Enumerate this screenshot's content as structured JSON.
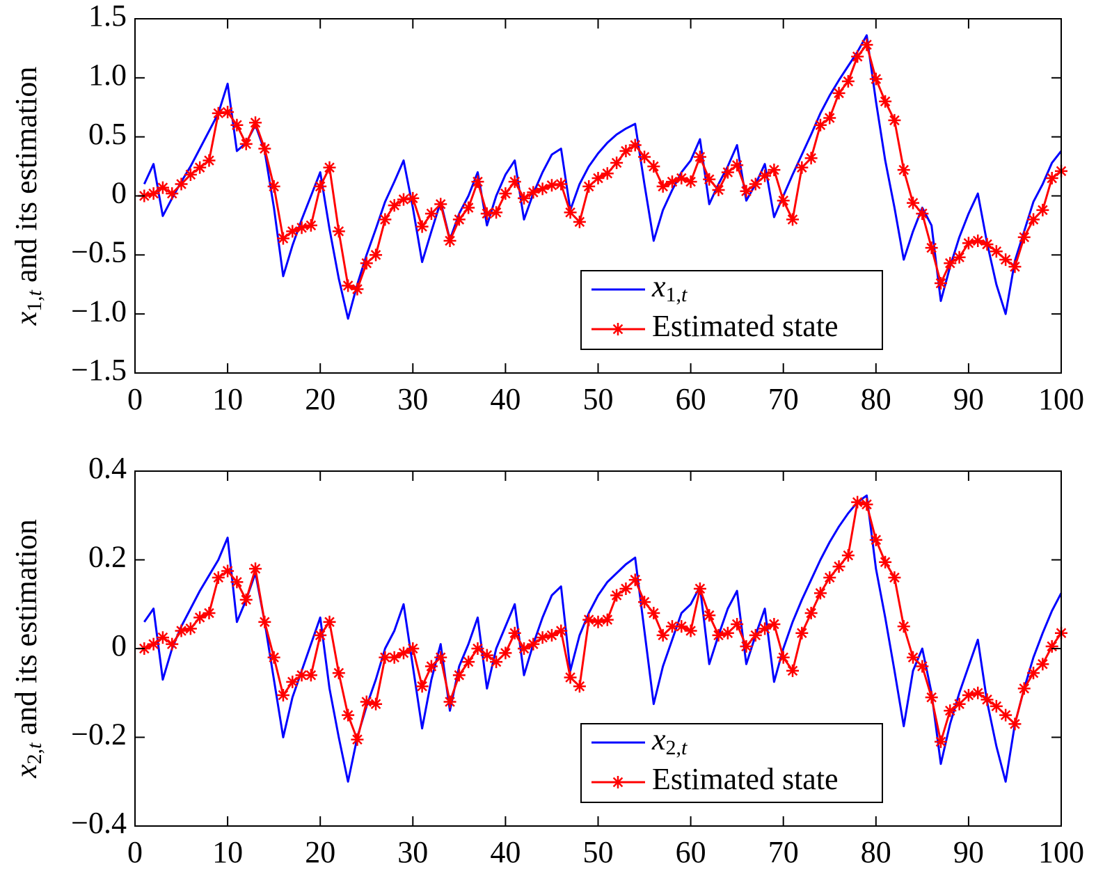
{
  "chart_data": [
    {
      "type": "line",
      "ylabel": "x1,t and its estimation",
      "x": [
        1,
        2,
        3,
        4,
        5,
        6,
        7,
        8,
        9,
        10,
        11,
        12,
        13,
        14,
        15,
        16,
        17,
        18,
        19,
        20,
        21,
        22,
        23,
        24,
        25,
        26,
        27,
        28,
        29,
        30,
        31,
        32,
        33,
        34,
        35,
        36,
        37,
        38,
        39,
        40,
        41,
        42,
        43,
        44,
        45,
        46,
        47,
        48,
        49,
        50,
        51,
        52,
        53,
        54,
        55,
        56,
        57,
        58,
        59,
        60,
        61,
        62,
        63,
        64,
        65,
        66,
        67,
        68,
        69,
        70,
        71,
        72,
        73,
        74,
        75,
        76,
        77,
        78,
        79,
        80,
        81,
        82,
        83,
        84,
        85,
        86,
        87,
        88,
        89,
        90,
        91,
        92,
        93,
        94,
        95,
        96,
        97,
        98,
        99,
        100
      ],
      "series": [
        {
          "name": "x1,t",
          "color": "#0000ff",
          "values": [
            0.1,
            0.27,
            -0.17,
            -0.02,
            0.12,
            0.25,
            0.4,
            0.55,
            0.7,
            0.95,
            0.38,
            0.45,
            0.6,
            0.38,
            -0.1,
            -0.68,
            -0.42,
            -0.2,
            0.0,
            0.2,
            -0.28,
            -0.7,
            -1.04,
            -0.75,
            -0.5,
            -0.28,
            -0.05,
            0.12,
            0.3,
            -0.1,
            -0.56,
            -0.3,
            -0.05,
            -0.37,
            -0.15,
            0.0,
            0.2,
            -0.25,
            0.0,
            0.18,
            0.3,
            -0.2,
            0.02,
            0.2,
            0.35,
            0.4,
            -0.12,
            0.1,
            0.25,
            0.36,
            0.45,
            0.52,
            0.57,
            0.61,
            0.1,
            -0.38,
            -0.12,
            0.05,
            0.2,
            0.3,
            0.48,
            -0.07,
            0.1,
            0.25,
            0.43,
            -0.04,
            0.1,
            0.27,
            -0.18,
            0.0,
            0.18,
            0.35,
            0.52,
            0.7,
            0.85,
            0.98,
            1.1,
            1.22,
            1.36,
            0.8,
            0.3,
            -0.1,
            -0.54,
            -0.3,
            -0.1,
            -0.25,
            -0.89,
            -0.6,
            -0.35,
            -0.15,
            0.02,
            -0.4,
            -0.75,
            -1.0,
            -0.55,
            -0.3,
            -0.05,
            0.1,
            0.28,
            0.38
          ]
        },
        {
          "name": "Estimated state",
          "color": "#ff0000",
          "marker": "*",
          "values": [
            0,
            0.02,
            0.07,
            0.02,
            0.1,
            0.18,
            0.24,
            0.3,
            0.7,
            0.71,
            0.6,
            0.44,
            0.62,
            0.4,
            0.08,
            -0.36,
            -0.3,
            -0.27,
            -0.25,
            0.08,
            0.24,
            -0.3,
            -0.76,
            -0.79,
            -0.57,
            -0.5,
            -0.2,
            -0.08,
            -0.03,
            -0.02,
            -0.26,
            -0.15,
            -0.07,
            -0.38,
            -0.2,
            -0.1,
            0.12,
            -0.15,
            -0.14,
            0.02,
            0.12,
            -0.02,
            0.03,
            0.06,
            0.09,
            0.1,
            -0.14,
            -0.22,
            0.08,
            0.15,
            0.19,
            0.28,
            0.38,
            0.43,
            0.33,
            0.25,
            0.08,
            0.12,
            0.15,
            0.12,
            0.33,
            0.14,
            0.05,
            0.2,
            0.26,
            0.04,
            0.1,
            0.17,
            0.22,
            -0.04,
            -0.2,
            0.24,
            0.32,
            0.6,
            0.66,
            0.87,
            0.97,
            1.18,
            1.28,
            0.99,
            0.8,
            0.64,
            0.22,
            -0.06,
            -0.15,
            -0.44,
            -0.74,
            -0.57,
            -0.52,
            -0.4,
            -0.38,
            -0.41,
            -0.47,
            -0.54,
            -0.6,
            -0.35,
            -0.2,
            -0.12,
            0.15,
            0.21
          ]
        }
      ],
      "xlim": [
        0,
        100
      ],
      "xticks": [
        0,
        10,
        20,
        30,
        40,
        50,
        60,
        70,
        80,
        90,
        100
      ],
      "ylim": [
        -1.5,
        1.5
      ],
      "yticks": [
        {
          "value": -1.5,
          "label": "−1.5"
        },
        {
          "value": -1,
          "label": "−1.0"
        },
        {
          "value": -0.5,
          "label": "−0.5"
        },
        0,
        0.5,
        {
          "value": 1,
          "label": "1.0"
        },
        1.5
      ]
    },
    {
      "type": "line",
      "ylabel": "x2,t and its estimation",
      "x": [
        1,
        2,
        3,
        4,
        5,
        6,
        7,
        8,
        9,
        10,
        11,
        12,
        13,
        14,
        15,
        16,
        17,
        18,
        19,
        20,
        21,
        22,
        23,
        24,
        25,
        26,
        27,
        28,
        29,
        30,
        31,
        32,
        33,
        34,
        35,
        36,
        37,
        38,
        39,
        40,
        41,
        42,
        43,
        44,
        45,
        46,
        47,
        48,
        49,
        50,
        51,
        52,
        53,
        54,
        55,
        56,
        57,
        58,
        59,
        60,
        61,
        62,
        63,
        64,
        65,
        66,
        67,
        68,
        69,
        70,
        71,
        72,
        73,
        74,
        75,
        76,
        77,
        78,
        79,
        80,
        81,
        82,
        83,
        84,
        85,
        86,
        87,
        88,
        89,
        90,
        91,
        92,
        93,
        94,
        95,
        96,
        97,
        98,
        99,
        100
      ],
      "series": [
        {
          "name": "x2,t",
          "color": "#0000ff",
          "values": [
            0.06,
            0.09,
            -0.07,
            0.0,
            0.05,
            0.09,
            0.13,
            0.165,
            0.2,
            0.25,
            0.06,
            0.11,
            0.17,
            0.06,
            -0.07,
            -0.2,
            -0.11,
            -0.05,
            0.01,
            0.07,
            -0.09,
            -0.2,
            -0.3,
            -0.2,
            -0.13,
            -0.07,
            0.0,
            0.04,
            0.1,
            -0.04,
            -0.18,
            -0.07,
            0.01,
            -0.14,
            -0.04,
            0.01,
            0.07,
            -0.09,
            0.0,
            0.05,
            0.1,
            -0.06,
            0.01,
            0.07,
            0.12,
            0.14,
            -0.05,
            0.03,
            0.08,
            0.12,
            0.15,
            0.17,
            0.19,
            0.205,
            0.04,
            -0.125,
            -0.04,
            0.02,
            0.08,
            0.1,
            0.14,
            -0.035,
            0.03,
            0.09,
            0.13,
            -0.035,
            0.03,
            0.09,
            -0.075,
            0.0,
            0.06,
            0.11,
            0.155,
            0.2,
            0.24,
            0.275,
            0.305,
            0.33,
            0.345,
            0.18,
            0.07,
            -0.05,
            -0.175,
            -0.05,
            0.0,
            -0.1,
            -0.26,
            -0.17,
            -0.1,
            -0.04,
            0.02,
            -0.12,
            -0.22,
            -0.3,
            -0.17,
            -0.09,
            -0.02,
            0.035,
            0.085,
            0.125
          ]
        },
        {
          "name": "Estimated state",
          "color": "#ff0000",
          "marker": "*",
          "values": [
            0.0,
            0.01,
            0.025,
            0.01,
            0.04,
            0.045,
            0.07,
            0.08,
            0.16,
            0.175,
            0.15,
            0.11,
            0.18,
            0.06,
            -0.02,
            -0.105,
            -0.075,
            -0.06,
            -0.06,
            0.03,
            0.06,
            -0.055,
            -0.15,
            -0.205,
            -0.12,
            -0.125,
            -0.02,
            -0.02,
            -0.01,
            0.0,
            -0.085,
            -0.04,
            -0.02,
            -0.12,
            -0.06,
            -0.03,
            0.0,
            -0.015,
            -0.03,
            -0.01,
            0.035,
            0.0,
            0.01,
            0.025,
            0.03,
            0.04,
            -0.065,
            -0.085,
            0.065,
            0.06,
            0.065,
            0.12,
            0.135,
            0.155,
            0.105,
            0.08,
            0.03,
            0.05,
            0.05,
            0.04,
            0.135,
            0.075,
            0.03,
            0.035,
            0.055,
            0.005,
            0.03,
            0.045,
            0.055,
            -0.02,
            -0.05,
            0.035,
            0.08,
            0.125,
            0.16,
            0.185,
            0.21,
            0.33,
            0.325,
            0.245,
            0.195,
            0.16,
            0.05,
            -0.02,
            -0.04,
            -0.11,
            -0.21,
            -0.14,
            -0.125,
            -0.105,
            -0.1,
            -0.115,
            -0.13,
            -0.15,
            -0.17,
            -0.09,
            -0.055,
            -0.035,
            0.005,
            0.035
          ]
        }
      ],
      "xlim": [
        0,
        100
      ],
      "xticks": [
        0,
        10,
        20,
        30,
        40,
        50,
        60,
        70,
        80,
        90,
        100
      ],
      "ylim": [
        -0.4,
        0.4
      ],
      "yticks": [
        {
          "value": -0.4,
          "label": "−0.4"
        },
        {
          "value": -0.2,
          "label": "−0.2"
        },
        0,
        0.2,
        0.4
      ]
    }
  ]
}
